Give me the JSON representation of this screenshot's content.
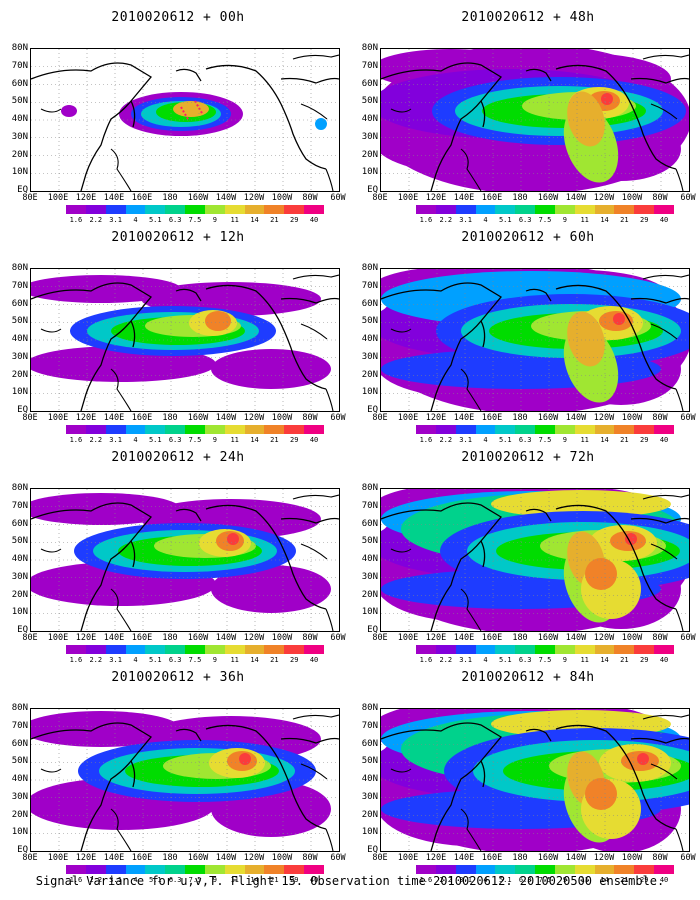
{
  "caption": "Signal Variance for u,v,T. Flight 15. Observation time 2010020612. 2010020500 ensemble.",
  "lat_labels": [
    "80N",
    "70N",
    "60N",
    "50N",
    "40N",
    "30N",
    "20N",
    "10N",
    "EQ"
  ],
  "lon_labels": [
    "80E",
    "100E",
    "120E",
    "140E",
    "160E",
    "180",
    "160W",
    "140W",
    "120W",
    "100W",
    "80W",
    "60W"
  ],
  "colorbar": {
    "labels": [
      "1.6",
      "2.2",
      "3.1",
      "4",
      "5.1",
      "6.3",
      "7.5",
      "9",
      "11",
      "14",
      "21",
      "29",
      "40"
    ],
    "colors": [
      "#a000c8",
      "#8200dc",
      "#1e3cff",
      "#00a0ff",
      "#00c8c8",
      "#00d28c",
      "#00dc00",
      "#a0e632",
      "#e6dc32",
      "#e6af2d",
      "#f08228",
      "#fa3c3c",
      "#f00082"
    ]
  },
  "panels": [
    {
      "title": "2010020612 + 00h",
      "level": 0
    },
    {
      "title": "2010020612 + 12h",
      "level": 1
    },
    {
      "title": "2010020612 + 24h",
      "level": 2
    },
    {
      "title": "2010020612 + 36h",
      "level": 3
    },
    {
      "title": "2010020612 + 48h",
      "level": 4
    },
    {
      "title": "2010020612 + 60h",
      "level": 5
    },
    {
      "title": "2010020612 + 72h",
      "level": 6
    },
    {
      "title": "2010020612 + 84h",
      "level": 7
    }
  ]
}
